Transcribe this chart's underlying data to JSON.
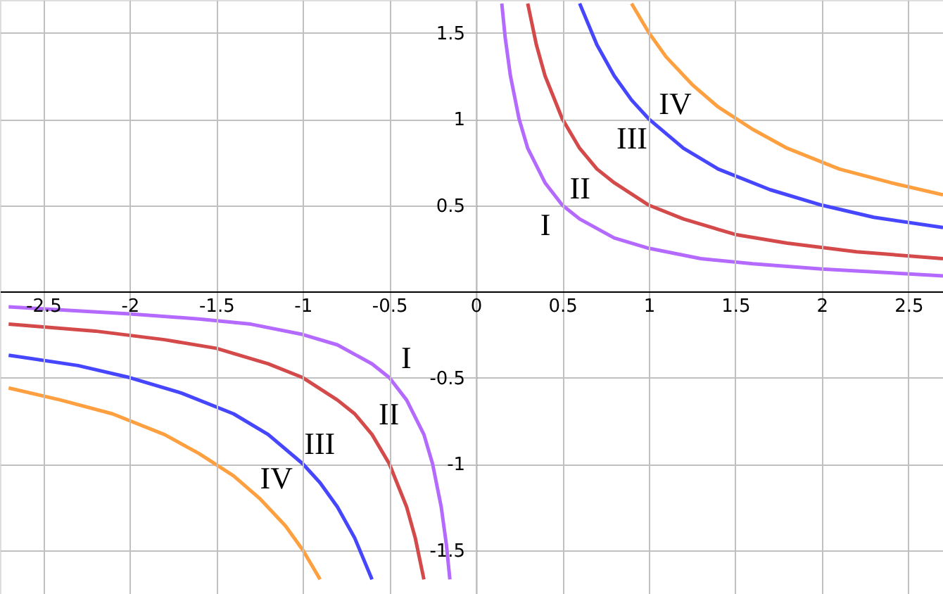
{
  "chart_data": {
    "type": "line",
    "xlim": [
      -2.75,
      2.7
    ],
    "ylim": [
      -1.755,
      1.69
    ],
    "xticks": [
      -2.5,
      -2,
      -1.5,
      -1,
      -0.5,
      0,
      0.5,
      1,
      1.5,
      2,
      2.5
    ],
    "yticks": [
      -1.5,
      -1,
      -0.5,
      0.5,
      1,
      1.5
    ],
    "grid": true,
    "marker": "none",
    "line_style": "solid",
    "series": [
      {
        "color": "#b469ff",
        "x": [
          -2.7,
          -2,
          -1.6,
          -1.3,
          -1,
          -0.8,
          -0.6,
          -0.5,
          -0.4,
          -0.3,
          -0.25,
          -0.2,
          -0.17,
          -0.15,
          0,
          0.15,
          0.17,
          0.2,
          0.25,
          0.3,
          0.4,
          0.5,
          0.6,
          0.8,
          1,
          1.3,
          1.6,
          2,
          2.7
        ],
        "values": [
          -0.09,
          -0.13,
          -0.16,
          -0.19,
          -0.25,
          -0.31,
          -0.42,
          -0.5,
          -0.63,
          -0.83,
          -1,
          -1.25,
          -1.47,
          -1.67,
          null,
          1.67,
          1.47,
          1.25,
          1,
          0.83,
          0.63,
          0.5,
          0.42,
          0.31,
          0.25,
          0.19,
          0.16,
          0.13,
          0.09
        ]
      },
      {
        "color": "#d44a4a",
        "x": [
          -2.7,
          -2.2,
          -1.8,
          -1.5,
          -1.2,
          -1,
          -0.8,
          -0.7,
          -0.6,
          -0.5,
          -0.4,
          -0.35,
          -0.3,
          0,
          0.3,
          0.35,
          0.4,
          0.5,
          0.6,
          0.7,
          0.8,
          1,
          1.2,
          1.5,
          1.8,
          2.2,
          2.7
        ],
        "values": [
          -0.19,
          -0.23,
          -0.28,
          -0.33,
          -0.42,
          -0.5,
          -0.63,
          -0.71,
          -0.83,
          -1,
          -1.25,
          -1.43,
          -1.67,
          null,
          1.67,
          1.43,
          1.25,
          1,
          0.83,
          0.71,
          0.63,
          0.5,
          0.42,
          0.33,
          0.28,
          0.23,
          0.19
        ]
      },
      {
        "color": "#4646ff",
        "x": [
          -2.7,
          -2.3,
          -2,
          -1.7,
          -1.4,
          -1.2,
          -1,
          -0.9,
          -0.8,
          -0.7,
          -0.6,
          0,
          0.6,
          0.7,
          0.8,
          0.9,
          1,
          1.2,
          1.4,
          1.7,
          2,
          2.3,
          2.7
        ],
        "values": [
          -0.37,
          -0.43,
          -0.5,
          -0.59,
          -0.71,
          -0.83,
          -1,
          -1.11,
          -1.25,
          -1.43,
          -1.67,
          null,
          1.67,
          1.43,
          1.25,
          1.11,
          1,
          0.83,
          0.71,
          0.59,
          0.5,
          0.43,
          0.37
        ]
      },
      {
        "color": "#ffa040",
        "x": [
          -2.7,
          -2.4,
          -2.1,
          -1.8,
          -1.6,
          -1.4,
          -1.25,
          -1.1,
          -1,
          -0.9,
          0,
          0.9,
          1,
          1.1,
          1.25,
          1.4,
          1.6,
          1.8,
          2.1,
          2.4,
          2.7
        ],
        "values": [
          -0.56,
          -0.63,
          -0.71,
          -0.83,
          -0.94,
          -1.07,
          -1.2,
          -1.36,
          -1.5,
          -1.67,
          null,
          1.67,
          1.5,
          1.36,
          1.2,
          1.07,
          0.94,
          0.83,
          0.71,
          0.63,
          0.56
        ]
      }
    ],
    "annotations": [
      {
        "text": "I",
        "x": 0.5,
        "y": 0.5
      },
      {
        "text": "II",
        "x": 0.7,
        "y": 0.71
      },
      {
        "text": "III",
        "x": 1,
        "y": 1
      },
      {
        "text": "IV",
        "x": 1.25,
        "y": 1.2
      },
      {
        "text": "I",
        "x": -0.5,
        "y": -0.5
      },
      {
        "text": "II",
        "x": -0.6,
        "y": -0.83
      },
      {
        "text": "III",
        "x": -1,
        "y": -1
      },
      {
        "text": "IV",
        "x": -1.25,
        "y": -1.2
      }
    ]
  }
}
